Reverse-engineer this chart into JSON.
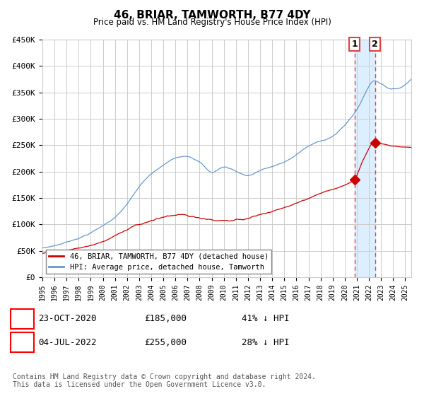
{
  "title": "46, BRIAR, TAMWORTH, B77 4DY",
  "subtitle": "Price paid vs. HM Land Registry's House Price Index (HPI)",
  "ylim": [
    0,
    450000
  ],
  "yticks": [
    0,
    50000,
    100000,
    150000,
    200000,
    250000,
    300000,
    350000,
    400000,
    450000
  ],
  "ytick_labels": [
    "£0",
    "£50K",
    "£100K",
    "£150K",
    "£200K",
    "£250K",
    "£300K",
    "£350K",
    "£400K",
    "£450K"
  ],
  "hpi_color": "#6699cc",
  "price_color": "#cc0000",
  "marker_color": "#cc0000",
  "dashed_line_color": "#dd4444",
  "highlight_bg": "#ddeeff",
  "grid_color": "#cccccc",
  "legend_label_price": "46, BRIAR, TAMWORTH, B77 4DY (detached house)",
  "legend_label_hpi": "HPI: Average price, detached house, Tamworth",
  "transaction1_label": "1",
  "transaction1_date": "23-OCT-2020",
  "transaction1_price": "£185,000",
  "transaction1_pct": "41% ↓ HPI",
  "transaction2_label": "2",
  "transaction2_date": "04-JUL-2022",
  "transaction2_price": "£255,000",
  "transaction2_pct": "28% ↓ HPI",
  "footer": "Contains HM Land Registry data © Crown copyright and database right 2024.\nThis data is licensed under the Open Government Licence v3.0.",
  "transaction1_x": 2020.81,
  "transaction2_x": 2022.5,
  "transaction1_y": 185000,
  "transaction2_y": 255000,
  "xmin": 1995,
  "xmax": 2025.5
}
